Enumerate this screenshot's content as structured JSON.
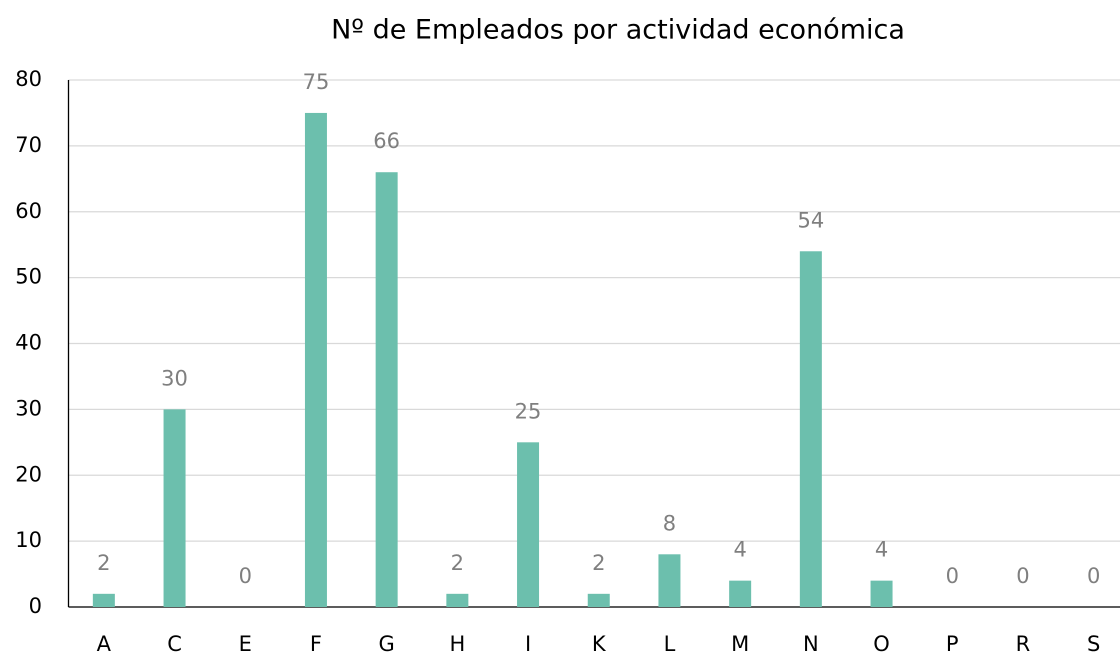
{
  "chart_data": {
    "type": "bar",
    "title": "Nº de Empleados por actividad económica",
    "categories": [
      "A",
      "C",
      "E",
      "F",
      "G",
      "H",
      "I",
      "K",
      "L",
      "M",
      "N",
      "O",
      "P",
      "R",
      "S"
    ],
    "values": [
      2,
      30,
      0,
      75,
      66,
      2,
      25,
      2,
      8,
      4,
      54,
      4,
      0,
      0,
      0
    ],
    "color": "#6cbfad",
    "ylim": [
      0,
      80
    ],
    "yticks": [
      0,
      10,
      20,
      30,
      40,
      50,
      60,
      70,
      80
    ],
    "grid": true,
    "data_labels": true
  }
}
